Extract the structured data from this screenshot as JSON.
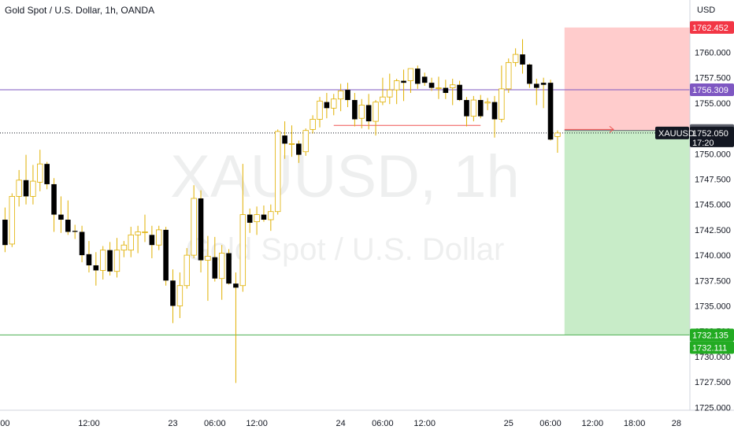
{
  "header": {
    "title": "Gold Spot / U.S. Dollar, 1h, OANDA"
  },
  "watermark": {
    "symbol": "XAUUSD, 1h",
    "name": "Gold Spot / U.S. Dollar"
  },
  "colors": {
    "up": "#ffffff",
    "down": "#000000",
    "wick": "#e0b000",
    "stop_zone": "#ffcccc",
    "target_zone": "#c8ecc8",
    "purple_line": "#7e57c2",
    "green_line": "#4caf50",
    "red_arrow": "#ef5350",
    "price_tag": "#131722",
    "stop_tag": "#f23645",
    "target_tag": "#22ab22",
    "entry_tag": "#5d606b"
  },
  "chart_data": {
    "type": "candlestick",
    "symbol": "XAUUSD",
    "interval": "1h",
    "y_axis": {
      "unit": "USD",
      "ticks": [
        "1725.000",
        "1727.500",
        "1730.000",
        "1732.500",
        "1735.000",
        "1737.500",
        "1740.000",
        "1742.500",
        "1745.000",
        "1747.500",
        "1750.000",
        "1752.500",
        "1755.000",
        "1757.500",
        "1760.000"
      ],
      "range": [
        1723.5,
        1764.3
      ]
    },
    "x_axis": {
      "ticks": [
        {
          "label": "00",
          "hour": 0
        },
        {
          "label": "12:00",
          "hour": 12
        },
        {
          "label": "23",
          "hour": 24
        },
        {
          "label": "06:00",
          "hour": 30
        },
        {
          "label": "12:00",
          "hour": 36
        },
        {
          "label": "24",
          "hour": 48
        },
        {
          "label": "06:00",
          "hour": 54
        },
        {
          "label": "12:00",
          "hour": 60
        },
        {
          "label": "25",
          "hour": 72
        },
        {
          "label": "06:00",
          "hour": 78
        },
        {
          "label": "12:00",
          "hour": 84
        },
        {
          "label": "18:00",
          "hour": 90
        },
        {
          "label": "28",
          "hour": 96
        }
      ]
    },
    "candles": [
      {
        "t": 0,
        "o": 1743.5,
        "h": 1744.7,
        "l": 1740.3,
        "c": 1741.0
      },
      {
        "t": 1,
        "o": 1741.1,
        "h": 1746.1,
        "l": 1740.8,
        "c": 1745.8
      },
      {
        "t": 2,
        "o": 1745.8,
        "h": 1748.4,
        "l": 1744.8,
        "c": 1747.4
      },
      {
        "t": 3,
        "o": 1747.4,
        "h": 1749.9,
        "l": 1745.0,
        "c": 1745.8
      },
      {
        "t": 4,
        "o": 1745.8,
        "h": 1748.9,
        "l": 1745.0,
        "c": 1747.3
      },
      {
        "t": 5,
        "o": 1747.2,
        "h": 1750.4,
        "l": 1746.3,
        "c": 1749.0
      },
      {
        "t": 6,
        "o": 1749.0,
        "h": 1749.2,
        "l": 1746.5,
        "c": 1747.0
      },
      {
        "t": 7,
        "o": 1747.0,
        "h": 1747.6,
        "l": 1742.3,
        "c": 1744.0
      },
      {
        "t": 8,
        "o": 1744.0,
        "h": 1745.8,
        "l": 1742.2,
        "c": 1743.5
      },
      {
        "t": 9,
        "o": 1743.5,
        "h": 1745.4,
        "l": 1742.0,
        "c": 1742.3
      },
      {
        "t": 10,
        "o": 1742.4,
        "h": 1743.0,
        "l": 1741.6,
        "c": 1742.3
      },
      {
        "t": 11,
        "o": 1742.3,
        "h": 1742.9,
        "l": 1739.3,
        "c": 1740.0
      },
      {
        "t": 12,
        "o": 1740.1,
        "h": 1741.4,
        "l": 1738.3,
        "c": 1739.0
      },
      {
        "t": 13,
        "o": 1739.0,
        "h": 1740.3,
        "l": 1737.0,
        "c": 1738.5
      },
      {
        "t": 14,
        "o": 1738.5,
        "h": 1740.9,
        "l": 1737.6,
        "c": 1740.5
      },
      {
        "t": 15,
        "o": 1740.5,
        "h": 1741.3,
        "l": 1738.0,
        "c": 1738.4
      },
      {
        "t": 16,
        "o": 1738.4,
        "h": 1741.7,
        "l": 1737.8,
        "c": 1740.5
      },
      {
        "t": 17,
        "o": 1740.5,
        "h": 1741.4,
        "l": 1739.8,
        "c": 1741.0
      },
      {
        "t": 18,
        "o": 1740.5,
        "h": 1742.8,
        "l": 1739.8,
        "c": 1742.0
      },
      {
        "t": 19,
        "o": 1742.0,
        "h": 1742.9,
        "l": 1740.2,
        "c": 1742.3
      },
      {
        "t": 20,
        "o": 1742.3,
        "h": 1744.0,
        "l": 1741.3,
        "c": 1742.3
      },
      {
        "t": 21,
        "o": 1742.0,
        "h": 1742.9,
        "l": 1739.7,
        "c": 1741.0
      },
      {
        "t": 22,
        "o": 1741.0,
        "h": 1742.9,
        "l": 1740.5,
        "c": 1742.5
      },
      {
        "t": 23,
        "o": 1742.5,
        "h": 1742.8,
        "l": 1737.0,
        "c": 1737.5
      },
      {
        "t": 24,
        "o": 1737.5,
        "h": 1738.6,
        "l": 1733.3,
        "c": 1735.0
      },
      {
        "t": 25,
        "o": 1735.0,
        "h": 1738.3,
        "l": 1733.8,
        "c": 1737.0
      },
      {
        "t": 26,
        "o": 1737.0,
        "h": 1740.7,
        "l": 1736.7,
        "c": 1740.0
      },
      {
        "t": 27,
        "o": 1740.0,
        "h": 1746.9,
        "l": 1739.7,
        "c": 1745.6
      },
      {
        "t": 28,
        "o": 1745.6,
        "h": 1746.4,
        "l": 1738.3,
        "c": 1739.5
      },
      {
        "t": 29,
        "o": 1739.5,
        "h": 1741.9,
        "l": 1735.5,
        "c": 1739.9
      },
      {
        "t": 30,
        "o": 1739.8,
        "h": 1741.8,
        "l": 1737.4,
        "c": 1737.7
      },
      {
        "t": 31,
        "o": 1737.7,
        "h": 1741.0,
        "l": 1735.6,
        "c": 1740.2
      },
      {
        "t": 32,
        "o": 1740.2,
        "h": 1740.6,
        "l": 1737.1,
        "c": 1737.2
      },
      {
        "t": 33,
        "o": 1737.2,
        "h": 1738.3,
        "l": 1727.4,
        "c": 1736.8
      },
      {
        "t": 34,
        "o": 1737.0,
        "h": 1749.0,
        "l": 1736.4,
        "c": 1744.0
      },
      {
        "t": 35,
        "o": 1744.0,
        "h": 1744.6,
        "l": 1742.2,
        "c": 1743.2
      },
      {
        "t": 36,
        "o": 1743.3,
        "h": 1744.8,
        "l": 1742.0,
        "c": 1744.0
      },
      {
        "t": 37,
        "o": 1744.0,
        "h": 1744.9,
        "l": 1743.3,
        "c": 1743.5
      },
      {
        "t": 38,
        "o": 1743.5,
        "h": 1745.0,
        "l": 1742.4,
        "c": 1744.3
      },
      {
        "t": 39,
        "o": 1744.3,
        "h": 1752.4,
        "l": 1744.0,
        "c": 1752.2
      },
      {
        "t": 40,
        "o": 1751.8,
        "h": 1753.2,
        "l": 1749.5,
        "c": 1751.0
      },
      {
        "t": 41,
        "o": 1751.0,
        "h": 1752.8,
        "l": 1749.7,
        "c": 1751.0
      },
      {
        "t": 42,
        "o": 1751.0,
        "h": 1751.3,
        "l": 1749.1,
        "c": 1749.9
      },
      {
        "t": 43,
        "o": 1750.2,
        "h": 1752.5,
        "l": 1749.8,
        "c": 1752.3
      },
      {
        "t": 44,
        "o": 1752.4,
        "h": 1753.8,
        "l": 1752.0,
        "c": 1753.4
      },
      {
        "t": 45,
        "o": 1753.4,
        "h": 1755.6,
        "l": 1752.6,
        "c": 1755.2
      },
      {
        "t": 46,
        "o": 1755.1,
        "h": 1756.0,
        "l": 1753.5,
        "c": 1754.5
      },
      {
        "t": 47,
        "o": 1754.5,
        "h": 1755.9,
        "l": 1753.8,
        "c": 1755.4
      },
      {
        "t": 48,
        "o": 1755.4,
        "h": 1756.9,
        "l": 1754.2,
        "c": 1756.2
      },
      {
        "t": 49,
        "o": 1756.3,
        "h": 1757.0,
        "l": 1754.6,
        "c": 1755.3
      },
      {
        "t": 50,
        "o": 1755.3,
        "h": 1756.0,
        "l": 1752.7,
        "c": 1753.4
      },
      {
        "t": 51,
        "o": 1753.5,
        "h": 1755.4,
        "l": 1752.5,
        "c": 1754.8
      },
      {
        "t": 52,
        "o": 1754.8,
        "h": 1755.9,
        "l": 1752.4,
        "c": 1753.2
      },
      {
        "t": 53,
        "o": 1753.2,
        "h": 1755.3,
        "l": 1751.8,
        "c": 1755.1
      },
      {
        "t": 54,
        "o": 1755.1,
        "h": 1757.5,
        "l": 1754.8,
        "c": 1755.6
      },
      {
        "t": 55,
        "o": 1755.6,
        "h": 1757.9,
        "l": 1754.9,
        "c": 1756.3
      },
      {
        "t": 56,
        "o": 1756.3,
        "h": 1757.4,
        "l": 1754.9,
        "c": 1757.2
      },
      {
        "t": 57,
        "o": 1757.2,
        "h": 1758.3,
        "l": 1755.2,
        "c": 1757.0
      },
      {
        "t": 58,
        "o": 1757.2,
        "h": 1758.4,
        "l": 1756.0,
        "c": 1758.4
      },
      {
        "t": 59,
        "o": 1758.4,
        "h": 1758.7,
        "l": 1756.4,
        "c": 1756.9
      },
      {
        "t": 60,
        "o": 1757.6,
        "h": 1758.0,
        "l": 1756.7,
        "c": 1757.0
      },
      {
        "t": 61,
        "o": 1757.0,
        "h": 1757.5,
        "l": 1756.2,
        "c": 1756.5
      },
      {
        "t": 62,
        "o": 1756.5,
        "h": 1757.6,
        "l": 1755.4,
        "c": 1756.5
      },
      {
        "t": 63,
        "o": 1756.5,
        "h": 1757.3,
        "l": 1755.4,
        "c": 1756.0
      },
      {
        "t": 64,
        "o": 1756.5,
        "h": 1757.4,
        "l": 1754.8,
        "c": 1756.8
      },
      {
        "t": 65,
        "o": 1756.8,
        "h": 1757.2,
        "l": 1755.2,
        "c": 1755.3
      },
      {
        "t": 66,
        "o": 1755.3,
        "h": 1755.6,
        "l": 1752.7,
        "c": 1753.7
      },
      {
        "t": 67,
        "o": 1753.7,
        "h": 1755.7,
        "l": 1753.2,
        "c": 1755.3
      },
      {
        "t": 68,
        "o": 1755.3,
        "h": 1755.8,
        "l": 1753.5,
        "c": 1753.7
      },
      {
        "t": 69,
        "o": 1755.0,
        "h": 1755.5,
        "l": 1754.3,
        "c": 1755.1
      },
      {
        "t": 70,
        "o": 1755.1,
        "h": 1755.7,
        "l": 1751.6,
        "c": 1753.4
      },
      {
        "t": 71,
        "o": 1753.4,
        "h": 1758.7,
        "l": 1753.1,
        "c": 1756.4
      },
      {
        "t": 72,
        "o": 1756.4,
        "h": 1759.4,
        "l": 1756.0,
        "c": 1759.0
      },
      {
        "t": 73,
        "o": 1759.0,
        "h": 1760.4,
        "l": 1758.6,
        "c": 1759.8
      },
      {
        "t": 74,
        "o": 1759.8,
        "h": 1761.3,
        "l": 1757.9,
        "c": 1758.8
      },
      {
        "t": 75,
        "o": 1758.8,
        "h": 1758.9,
        "l": 1756.5,
        "c": 1756.9
      },
      {
        "t": 76,
        "o": 1756.9,
        "h": 1757.4,
        "l": 1754.8,
        "c": 1756.5
      },
      {
        "t": 77,
        "o": 1757.0,
        "h": 1757.5,
        "l": 1754.5,
        "c": 1756.8
      },
      {
        "t": 78,
        "o": 1757.0,
        "h": 1757.3,
        "l": 1751.3,
        "c": 1751.4
      },
      {
        "t": 79,
        "o": 1751.7,
        "h": 1752.3,
        "l": 1750.1,
        "c": 1752.05
      }
    ],
    "levels": {
      "purple_line": 1756.309,
      "green_line": 1732.135,
      "dotted_price_line": 1752.05,
      "red_arrow_level": 1752.8,
      "red_arrow_start_hour": 47,
      "red_arrow_end_hour": 68,
      "small_arrow_level": 1752.4,
      "small_arrow_start_hour": 80,
      "small_arrow_end_hour": 87
    },
    "position": {
      "side": "short",
      "start_hour": 80,
      "end_hour": 100,
      "entry": 1752.297,
      "stop": 1762.452,
      "target": 1732.135
    },
    "price_labels": {
      "stop": "1762.452",
      "purple": "1756.309",
      "entry": "1752.297",
      "symbol_tag": "XAUUSD",
      "current": "1752.050",
      "countdown": "17:20",
      "target_green": "1732.135",
      "target_green2": "1732.111"
    }
  }
}
